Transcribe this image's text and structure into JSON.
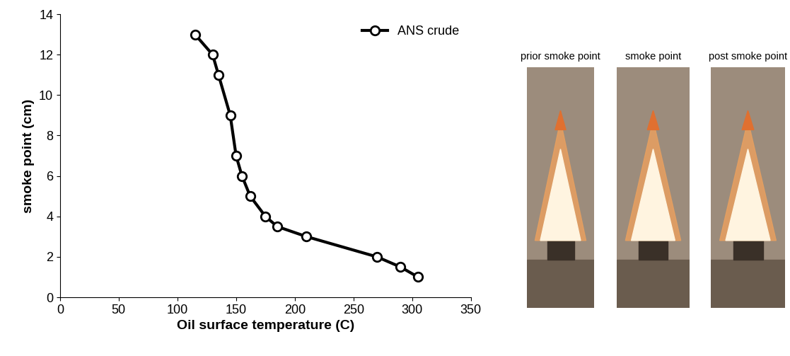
{
  "chart_data": {
    "type": "line",
    "x_label": "Oil surface temperature (C)",
    "y_label": "smoke point (cm)",
    "x": [
      115,
      130,
      135,
      145,
      150,
      155,
      162,
      175,
      185,
      210,
      270,
      290,
      305
    ],
    "series": [
      {
        "name": "ANS crude",
        "color": "#000000",
        "marker": "circle",
        "line_style": "solid",
        "values": [
          13,
          12,
          11,
          9,
          7,
          6,
          5,
          4,
          3.5,
          3,
          2,
          1.5,
          1
        ]
      }
    ],
    "xlim": [
      0,
      350
    ],
    "xticks": [
      0,
      50,
      100,
      150,
      200,
      250,
      300,
      350
    ],
    "ylim": [
      0,
      14
    ],
    "yticks": [
      0,
      2,
      4,
      6,
      8,
      10,
      12,
      14
    ],
    "grid": false,
    "legend": "upper right"
  },
  "photo_labels": [
    "prior smoke point",
    "smoke point",
    "post smoke point"
  ]
}
